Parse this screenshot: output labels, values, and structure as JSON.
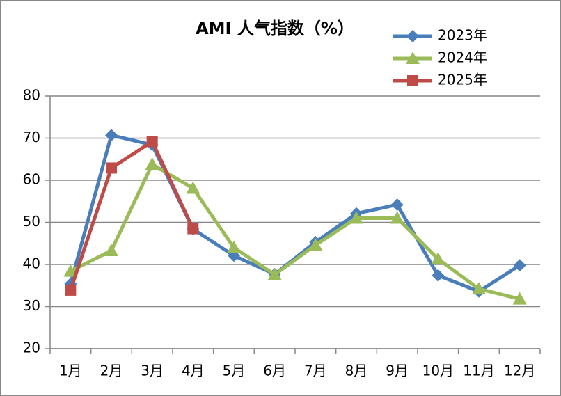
{
  "chart_data": {
    "type": "line",
    "title": "AMI 人气指数（%）",
    "categories": [
      "1月",
      "2月",
      "3月",
      "4月",
      "5月",
      "6月",
      "7月",
      "8月",
      "9月",
      "10月",
      "11月",
      "12月"
    ],
    "series": [
      {
        "name": "2023年",
        "color": "#4a7ebb",
        "marker": "diamond",
        "values": [
          35.4,
          70.7,
          68.4,
          48.4,
          42.1,
          37.7,
          45.3,
          52.1,
          54.2,
          37.4,
          33.6,
          39.8
        ]
      },
      {
        "name": "2024年",
        "color": "#9bbb59",
        "marker": "triangle",
        "values": [
          38.4,
          43.3,
          63.8,
          58.1,
          44.0,
          37.6,
          44.6,
          51.0,
          51.0,
          41.3,
          34.2,
          31.8
        ]
      },
      {
        "name": "2025年",
        "color": "#be4b48",
        "marker": "square",
        "values": [
          33.9,
          62.9,
          69.2,
          48.5,
          null,
          null,
          null,
          null,
          null,
          null,
          null,
          null
        ]
      }
    ],
    "ylim": [
      20,
      80
    ],
    "yticks": [
      20,
      30,
      40,
      50,
      60,
      70,
      80
    ],
    "grid": true,
    "legend": "top-right"
  }
}
